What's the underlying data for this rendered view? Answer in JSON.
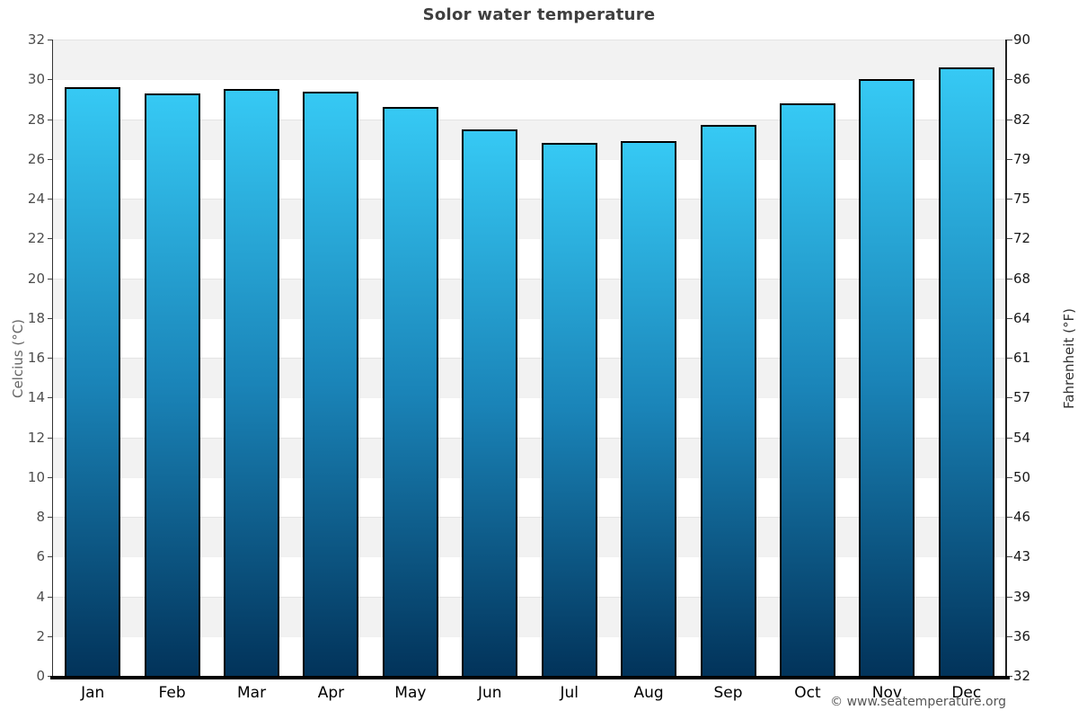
{
  "title": "Solor water temperature",
  "axes": {
    "left_title": "Celcius (°C)",
    "right_title": "Fahrenheit (°F)"
  },
  "footer": {
    "credit": "© www.seatemperature.org"
  },
  "chart_data": {
    "type": "bar",
    "title": "Solor water temperature",
    "categories": [
      "Jan",
      "Feb",
      "Mar",
      "Apr",
      "May",
      "Jun",
      "Jul",
      "Aug",
      "Sep",
      "Oct",
      "Nov",
      "Dec"
    ],
    "values": [
      29.6,
      29.3,
      29.5,
      29.4,
      28.6,
      27.5,
      26.8,
      26.9,
      27.7,
      28.8,
      30.0,
      30.6
    ],
    "unit": "°C",
    "ylabel": "Celcius (°C)",
    "ylabel_right": "Fahrenheit (°F)",
    "ylim": [
      0,
      32
    ],
    "yticks_left": [
      32,
      30,
      28,
      26,
      24,
      22,
      20,
      18,
      16,
      14,
      12,
      10,
      8,
      6,
      4,
      2,
      0
    ],
    "yticks_right": [
      "90",
      "86",
      "82",
      "79",
      "75",
      "72",
      "68",
      "64",
      "61",
      "57",
      "54",
      "50",
      "46",
      "43",
      "39",
      "36",
      "32"
    ],
    "grid": "alternating-horizontal-bands",
    "legend": "none",
    "colors": {
      "bar_gradient_top": "#36c9f4",
      "bar_gradient_mid": "#1a84b8",
      "bar_gradient_bottom": "#02335a",
      "bar_border": "#000000",
      "band_light": "#f2f2f2",
      "band_white": "#ffffff",
      "title_color": "#3f3f3f"
    }
  }
}
